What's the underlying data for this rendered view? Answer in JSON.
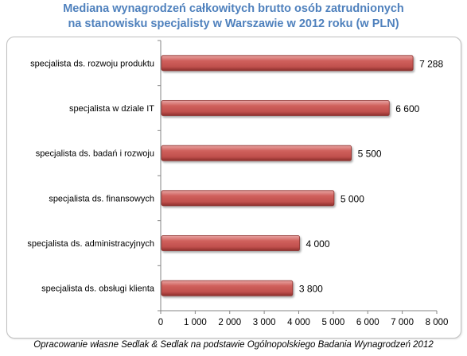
{
  "title": {
    "line1": "Mediana wynagrodzeń całkowitych brutto osób zatrudnionych",
    "line2": "na stanowisku specjalisty w Warszawie w 2012 roku (w PLN)"
  },
  "source": "Opracowanie własne Sedlak & Sedlak na podstawie Ogólnopolskiego Badania Wynagrodzeń 2012",
  "chart_data": {
    "type": "bar",
    "orientation": "horizontal",
    "categories": [
      "specjalista ds. rozwoju produktu",
      "specjalista w dziale IT",
      "specjalista ds. badań i rozwoju",
      "specjalista ds. finansowych",
      "specjalista ds. administracyjnych",
      "specjalista ds. obsługi klienta"
    ],
    "values": [
      7288,
      6600,
      5500,
      5000,
      4000,
      3800
    ],
    "value_labels": [
      "7 288",
      "6 600",
      "5 500",
      "5 000",
      "4 000",
      "3 800"
    ],
    "xlim": [
      0,
      8000
    ],
    "xticks": [
      0,
      1000,
      2000,
      3000,
      4000,
      5000,
      6000,
      7000,
      8000
    ],
    "xtick_labels": [
      "0",
      "1 000",
      "2 000",
      "3 000",
      "4 000",
      "5 000",
      "6 000",
      "7 000",
      "8 000"
    ],
    "bar_color": "#c0504d",
    "title_color": "#4f81bd",
    "grid": false,
    "legend": "none"
  }
}
